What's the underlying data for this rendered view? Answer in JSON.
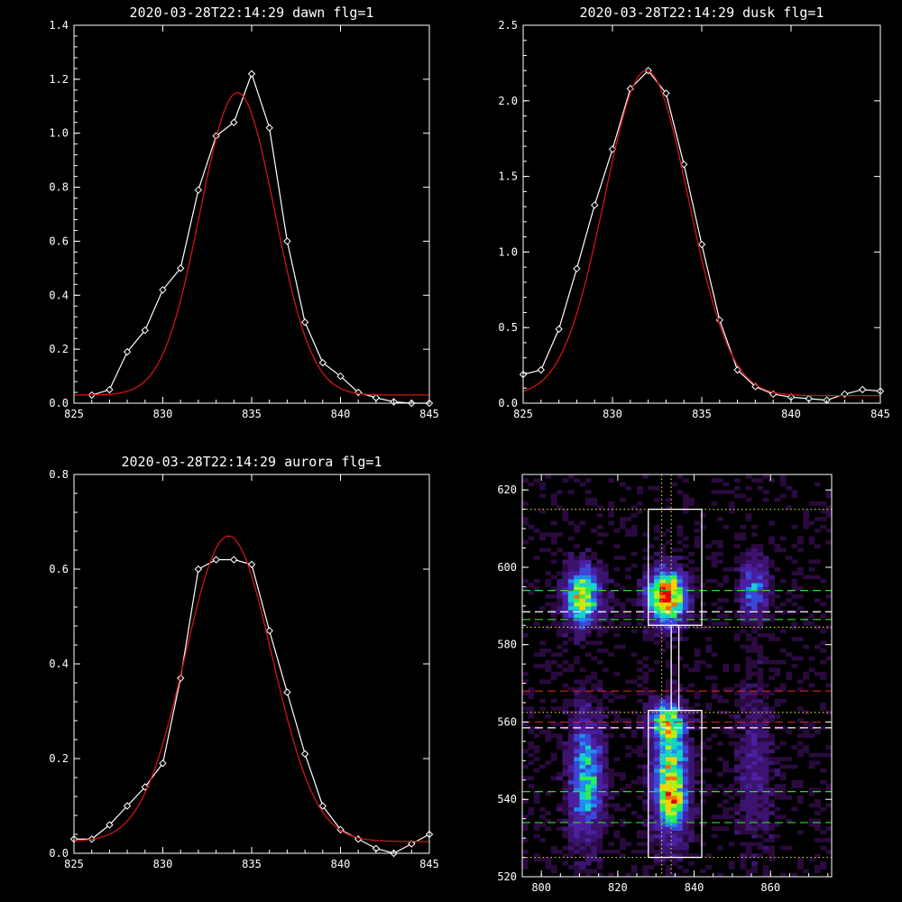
{
  "chart_data": [
    {
      "type": "line",
      "title": "2020-03-28T22:14:29 dawn flg=1",
      "xlim": [
        825,
        845
      ],
      "ylim": [
        0.0,
        1.4
      ],
      "xticks": [
        "825",
        "830",
        "835",
        "840",
        "845"
      ],
      "yticks": [
        "0.0",
        "0.2",
        "0.4",
        "0.6",
        "0.8",
        "1.0",
        "1.2",
        "1.4"
      ],
      "series": [
        {
          "style": "white-line-diamond-markers",
          "x": [
            826,
            827,
            828,
            829,
            830,
            831,
            832,
            833,
            834,
            835,
            836,
            837,
            838,
            839,
            840,
            841,
            842,
            843,
            844,
            845
          ],
          "y": [
            0.03,
            0.05,
            0.19,
            0.27,
            0.42,
            0.5,
            0.79,
            0.99,
            1.04,
            1.22,
            1.02,
            0.6,
            0.3,
            0.15,
            0.1,
            0.04,
            0.02,
            0.005,
            0.0,
            0.0
          ]
        },
        {
          "style": "red-gaussian-fit",
          "gaussian": {
            "amplitude": 1.12,
            "center": 834.2,
            "sigma": 2.1,
            "baseline": 0.03
          }
        }
      ]
    },
    {
      "type": "line",
      "title": "2020-03-28T22:14:29 dusk flg=1",
      "xlim": [
        825,
        845
      ],
      "ylim": [
        0.0,
        2.5
      ],
      "xticks": [
        "825",
        "830",
        "835",
        "840",
        "845"
      ],
      "yticks": [
        "0.0",
        "0.5",
        "1.0",
        "1.5",
        "2.0",
        "2.5"
      ],
      "series": [
        {
          "style": "white-line-diamond-markers",
          "x": [
            825,
            826,
            827,
            828,
            829,
            830,
            831,
            832,
            833,
            834,
            835,
            836,
            837,
            838,
            839,
            840,
            841,
            842,
            843,
            844,
            845
          ],
          "y": [
            0.19,
            0.22,
            0.49,
            0.89,
            1.31,
            1.68,
            2.08,
            2.2,
            2.05,
            1.58,
            1.05,
            0.55,
            0.22,
            0.11,
            0.06,
            0.04,
            0.03,
            0.02,
            0.06,
            0.09,
            0.08
          ]
        },
        {
          "style": "red-gaussian-fit",
          "gaussian": {
            "amplitude": 2.15,
            "center": 831.9,
            "sigma": 2.35,
            "baseline": 0.05
          }
        }
      ]
    },
    {
      "type": "line",
      "title": "2020-03-28T22:14:29 aurora flg=1",
      "xlim": [
        825,
        845
      ],
      "ylim": [
        0.0,
        0.8
      ],
      "xticks": [
        "825",
        "830",
        "835",
        "840",
        "845"
      ],
      "yticks": [
        "0.0",
        "0.2",
        "0.4",
        "0.6",
        "0.8"
      ],
      "series": [
        {
          "style": "white-line-diamond-markers",
          "x": [
            825,
            826,
            827,
            828,
            829,
            830,
            831,
            832,
            833,
            834,
            835,
            836,
            837,
            838,
            839,
            840,
            841,
            842,
            843,
            844,
            845
          ],
          "y": [
            0.03,
            0.03,
            0.06,
            0.1,
            0.14,
            0.19,
            0.37,
            0.6,
            0.62,
            0.62,
            0.61,
            0.47,
            0.34,
            0.21,
            0.1,
            0.05,
            0.03,
            0.01,
            0.0,
            0.02,
            0.04
          ]
        },
        {
          "style": "red-gaussian-fit",
          "gaussian": {
            "amplitude": 0.645,
            "center": 833.7,
            "sigma": 2.45,
            "baseline": 0.025
          }
        }
      ]
    },
    {
      "type": "heatmap",
      "xlim": [
        795,
        876
      ],
      "ylim": [
        520,
        624
      ],
      "xticks": [
        "800",
        "820",
        "840",
        "860"
      ],
      "yticks": [
        "520",
        "540",
        "560",
        "580",
        "600",
        "620"
      ],
      "colormap": [
        "#2a0a3e",
        "#3c1470",
        "#4b1fa0",
        "#3c46d8",
        "#1e8cf0",
        "#14d2c8",
        "#28f05a",
        "#b4f01e",
        "#ffd200",
        "#ff6e00",
        "#e60000"
      ],
      "blobs": [
        {
          "x": 810,
          "y": 592,
          "sx": 3,
          "sy": 5,
          "amp": 0.75
        },
        {
          "x": 832,
          "y": 592,
          "sx": 3.2,
          "sy": 4.5,
          "amp": 1.0
        },
        {
          "x": 832,
          "y": 560,
          "sx": 3,
          "sy": 3,
          "amp": 0.55
        },
        {
          "x": 833,
          "y": 545,
          "sx": 3,
          "sy": 10,
          "amp": 0.7
        },
        {
          "x": 834,
          "y": 538,
          "sx": 2,
          "sy": 3,
          "amp": 0.35
        },
        {
          "x": 811,
          "y": 545,
          "sx": 3,
          "sy": 11,
          "amp": 0.5
        },
        {
          "x": 855,
          "y": 594,
          "sx": 2.5,
          "sy": 5,
          "amp": 0.4
        },
        {
          "x": 855,
          "y": 548,
          "sx": 3,
          "sy": 14,
          "amp": 0.18
        }
      ],
      "boxes": [
        {
          "x0": 828,
          "x1": 842,
          "y0": 585,
          "y1": 615
        },
        {
          "x0": 828,
          "x1": 842,
          "y0": 525,
          "y1": 563
        },
        {
          "x0": 834,
          "x1": 836,
          "y0": 563,
          "y1": 585
        }
      ],
      "hlines": [
        {
          "y": 615,
          "color": "#c8c83c",
          "style": "dotted"
        },
        {
          "y": 594,
          "color": "#28dc28",
          "style": "dashed"
        },
        {
          "y": 588.5,
          "color": "#ffffff",
          "style": "dashed"
        },
        {
          "y": 586.5,
          "color": "#28dc28",
          "style": "dashed"
        },
        {
          "y": 584.5,
          "color": "#c8c83c",
          "style": "dotted"
        },
        {
          "y": 568,
          "color": "#c81e1e",
          "style": "dashed"
        },
        {
          "y": 562.5,
          "color": "#c8c83c",
          "style": "dotted"
        },
        {
          "y": 560,
          "color": "#c81e1e",
          "style": "dashed"
        },
        {
          "y": 558.5,
          "color": "#ffffff",
          "style": "dashed"
        },
        {
          "y": 542,
          "color": "#28dc28",
          "style": "dashed"
        },
        {
          "y": 534,
          "color": "#28dc28",
          "style": "dashed"
        },
        {
          "y": 525,
          "color": "#c8c83c",
          "style": "dotted"
        }
      ],
      "vlines": [
        {
          "x": 831.5,
          "color": "#c8c83c",
          "style": "dotted"
        },
        {
          "x": 834,
          "color": "#c8c83c",
          "style": "dotted"
        }
      ]
    }
  ]
}
